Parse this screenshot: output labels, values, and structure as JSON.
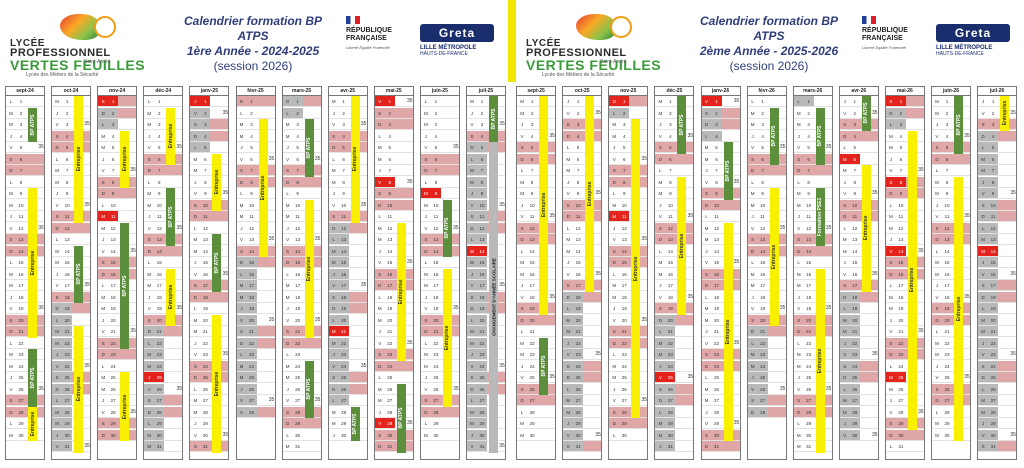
{
  "headers": [
    {
      "logo": {
        "line1": "LYCÉE",
        "line2": "PROFESSIONNEL",
        "line3": "VERTES FEUILLES",
        "line4": "Saint-André",
        "line5": "Lycée des Métiers de la Sécurité"
      },
      "title": {
        "line1": "Calendrier formation BP ATPS",
        "line2": "1ère Année  -  2024-2025",
        "line3": "(session 2026)"
      },
      "republique": {
        "line1": "RÉPUBLIQUE",
        "line2": "FRANÇAISE",
        "motto": "Liberté Égalité Fraternité"
      },
      "greta": {
        "name": "Greta",
        "line1": "LILLE MÉTROPOLE",
        "line2": "HAUTS-DE-FRANCE"
      }
    },
    {
      "logo": {
        "line1": "LYCÉE",
        "line2": "PROFESSIONNEL",
        "line3": "VERTES FEUILLES",
        "line4": "Saint-André",
        "line5": "Lycée des Métiers de la Sécurité"
      },
      "title": {
        "line1": "Calendrier formation BP ATPS",
        "line2": "2ème Année  -  2025-2026",
        "line3": "(session 2026)"
      },
      "republique": {
        "line1": "RÉPUBLIQUE",
        "line2": "FRANÇAISE",
        "motto": "Liberté Égalité Fraternité"
      },
      "greta": {
        "name": "Greta",
        "line1": "LILLE MÉTROPOLE",
        "line2": "HAUTS-DE-FRANCE"
      }
    }
  ],
  "labels": {
    "entreprise": "Entreprise",
    "bp": "BP ATPS",
    "hours": "35",
    "change": "CHANGEMENT D'ANNÉE SCOLAIRE",
    "formation_pse1": "Formation PSE1"
  },
  "colors": {
    "weekend": "#dfa7a7",
    "holiday": "#e3231c",
    "vacation": "#b9b9b9",
    "entreprise": "#f9f000",
    "bp": "#5c8f3c"
  },
  "months": [
    {
      "name": "sept-24",
      "start": 0,
      "days": 30,
      "holidays": [],
      "vac": [],
      "bp": [
        [
          2,
          4
        ],
        [
          23,
          27
        ]
      ],
      "ent": [
        [
          9,
          21
        ],
        [
          28,
          30
        ]
      ],
      "grey": []
    },
    {
      "name": "oct-24",
      "start": 2,
      "days": 31,
      "holidays": [],
      "vac": [
        [
          19,
          31
        ]
      ],
      "bp": [
        [
          14,
          18
        ]
      ],
      "ent": [
        [
          1,
          11
        ],
        [
          21,
          31
        ]
      ],
      "grey": []
    },
    {
      "name": "nov-24",
      "start": 5,
      "days": 30,
      "holidays": [
        1,
        11
      ],
      "vac": [
        1,
        2,
        3
      ],
      "bp": [
        [
          12,
          22
        ]
      ],
      "ent": [
        [
          4,
          8
        ],
        [
          25,
          30
        ]
      ],
      "grey": []
    },
    {
      "name": "déc-24",
      "start": 0,
      "days": 31,
      "holidays": [
        25
      ],
      "vac": [
        [
          21,
          31
        ]
      ],
      "bp": [
        [
          9,
          13
        ]
      ],
      "ent": [
        [
          2,
          6
        ],
        [
          16,
          20
        ]
      ],
      "grey": []
    },
    {
      "name": "janv-25",
      "start": 3,
      "days": 31,
      "holidays": [
        1
      ],
      "vac": [
        1,
        2,
        3,
        4,
        5
      ],
      "bp": [
        [
          13,
          17
        ]
      ],
      "ent": [
        [
          6,
          10
        ],
        [
          20,
          31
        ]
      ],
      "grey": []
    },
    {
      "name": "févr-25",
      "start": 6,
      "days": 28,
      "holidays": [],
      "vac": [
        [
          15,
          28
        ]
      ],
      "bp": [],
      "ent": [
        [
          3,
          14
        ]
      ],
      "grey": []
    },
    {
      "name": "mars-25",
      "start": 6,
      "days": 31,
      "holidays": [],
      "vac": [
        1,
        2
      ],
      "bp": [
        [
          3,
          7
        ],
        [
          24,
          28
        ]
      ],
      "ent": [
        [
          10,
          21
        ]
      ],
      "grey": []
    },
    {
      "name": "avr-25",
      "start": 2,
      "days": 30,
      "holidays": [
        21
      ],
      "vac": [
        [
          12,
          27
        ]
      ],
      "bp": [
        [
          28,
          30
        ]
      ],
      "ent": [
        [
          1,
          11
        ]
      ],
      "grey": []
    },
    {
      "name": "mai-25",
      "start": 4,
      "days": 31,
      "holidays": [
        1,
        8,
        29
      ],
      "vac": [],
      "bp": [
        [
          26,
          31
        ]
      ],
      "ent": [
        [
          12,
          23
        ]
      ],
      "grey": []
    },
    {
      "name": "juin-25",
      "start": 0,
      "days": 30,
      "holidays": [
        9
      ],
      "vac": [],
      "bp": [
        [
          10,
          14
        ]
      ],
      "ent": [
        [
          16,
          27
        ]
      ],
      "grey": []
    },
    {
      "name": "juil-25",
      "start": 2,
      "days": 31,
      "holidays": [
        14
      ],
      "vac": [
        [
          5,
          31
        ]
      ],
      "bp": [
        [
          1,
          4
        ]
      ],
      "ent": [],
      "grey": [
        [
          5,
          31
        ]
      ]
    },
    {
      "name": "sept-25",
      "start": 1,
      "days": 30,
      "holidays": [],
      "vac": [],
      "bp": [
        [
          22,
          26
        ]
      ],
      "ent": [
        [
          1,
          19
        ]
      ],
      "grey": []
    },
    {
      "name": "oct-25",
      "start": 3,
      "days": 31,
      "holidays": [],
      "vac": [
        [
          18,
          31
        ]
      ],
      "bp": [],
      "ent": [
        [
          1,
          17
        ]
      ],
      "grey": []
    },
    {
      "name": "nov-25",
      "start": 6,
      "days": 30,
      "holidays": [
        1,
        11
      ],
      "vac": [
        1,
        2
      ],
      "bp": [],
      "ent": [
        [
          3,
          28
        ]
      ],
      "grey": []
    },
    {
      "name": "déc-25",
      "start": 1,
      "days": 31,
      "holidays": [
        25
      ],
      "vac": [
        [
          20,
          31
        ]
      ],
      "bp": [
        [
          1,
          5
        ]
      ],
      "ent": [
        [
          8,
          19
        ]
      ],
      "grey": []
    },
    {
      "name": "janv-26",
      "start": 4,
      "days": 31,
      "holidays": [
        1
      ],
      "vac": [
        1,
        2,
        3,
        4
      ],
      "bp": [
        [
          5,
          9
        ]
      ],
      "ent": [
        [
          12,
          30
        ]
      ],
      "grey": []
    },
    {
      "name": "févr-26",
      "start": 0,
      "days": 28,
      "holidays": [],
      "vac": [
        [
          21,
          28
        ]
      ],
      "bp": [
        [
          2,
          6
        ]
      ],
      "ent": [
        [
          9,
          20
        ]
      ],
      "grey": []
    },
    {
      "name": "mars-26",
      "start": 0,
      "days": 31,
      "holidays": [],
      "vac": [
        1
      ],
      "bp": [
        [
          2,
          6
        ]
      ],
      "ent": [
        [
          16,
          31
        ]
      ],
      "grey": [],
      "pse": [
        [
          9,
          13
        ]
      ]
    },
    {
      "name": "avr-26",
      "start": 3,
      "days": 30,
      "holidays": [
        6
      ],
      "vac": [
        [
          18,
          30
        ]
      ],
      "bp": [
        [
          1,
          3
        ]
      ],
      "ent": [
        [
          7,
          17
        ]
      ],
      "grey": []
    },
    {
      "name": "mai-26",
      "start": 5,
      "days": 31,
      "holidays": [
        1,
        8,
        14,
        25
      ],
      "vac": [
        1,
        2,
        3
      ],
      "bp": [],
      "ent": [
        [
          4,
          29
        ]
      ],
      "grey": []
    },
    {
      "name": "juin-26",
      "start": 1,
      "days": 30,
      "holidays": [],
      "vac": [],
      "bp": [
        [
          1,
          5
        ]
      ],
      "ent": [
        [
          8,
          30
        ]
      ],
      "grey": []
    },
    {
      "name": "juil-26",
      "start": 3,
      "days": 31,
      "holidays": [
        14
      ],
      "vac": [
        [
          4,
          31
        ]
      ],
      "bp": [],
      "ent": [
        [
          1,
          3
        ]
      ],
      "grey": []
    }
  ]
}
